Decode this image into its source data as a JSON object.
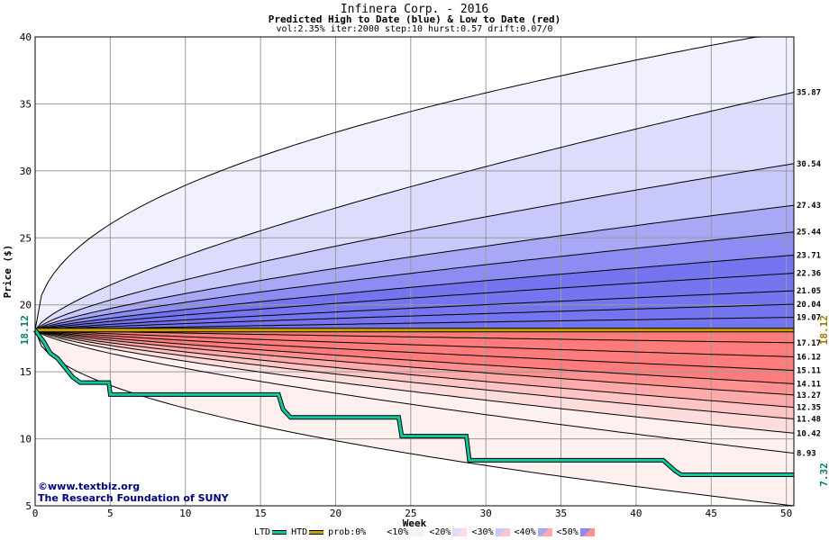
{
  "header": {
    "title": "Infinera Corp. - 2016",
    "subtitle": "Predicted High to Date (blue) &  Low to Date (red)",
    "params": "vol:2.35% iter:2000 step:10 hurst:0.57 drift:0.07/0"
  },
  "credit": {
    "site": "©www.textbiz.org",
    "org": "The Research Foundation of SUNY"
  },
  "chart_data": {
    "type": "area",
    "xlabel": "Week",
    "ylabel": "Price ($)",
    "xlim": [
      0,
      50.5
    ],
    "ylim": [
      5,
      40
    ],
    "x_ticks": [
      0,
      5,
      10,
      15,
      20,
      25,
      30,
      35,
      40,
      45,
      50
    ],
    "y_ticks": [
      5,
      10,
      15,
      20,
      25,
      30,
      35,
      40
    ],
    "grid": true,
    "start_price": 18.12,
    "start_label": "18.12",
    "current_price_label": "18.12",
    "ltd_end_label": "7.32",
    "colors": {
      "high_bands": [
        "#f0f0fe",
        "#dcdcfc",
        "#c8c8fa",
        "#a8a8f6",
        "#8c8cf2",
        "#7474ee"
      ],
      "low_bands": [
        "#fff0f0",
        "#ffdcdc",
        "#ffc4c4",
        "#ffaaaa",
        "#ff9090",
        "#ff7c7c"
      ],
      "price_line": "#c8a000",
      "ltd_line": "#10c8a0",
      "label_green": "#008060",
      "label_gold": "#a07800"
    },
    "high_series": [
      {
        "end": 40.5,
        "label": "",
        "exp": 0.45
      },
      {
        "end": 35.87,
        "label": "35.87",
        "exp": 0.72
      },
      {
        "end": 30.54,
        "label": "30.54",
        "exp": 0.74
      },
      {
        "end": 27.43,
        "label": "27.43",
        "exp": 0.76
      },
      {
        "end": 25.44,
        "label": "25.44",
        "exp": 0.78
      },
      {
        "end": 23.71,
        "label": "23.71",
        "exp": 0.8
      },
      {
        "end": 22.36,
        "label": "22.36",
        "exp": 0.82
      },
      {
        "end": 21.05,
        "label": "21.05",
        "exp": 0.84
      },
      {
        "end": 20.04,
        "label": "20.04",
        "exp": 0.86
      },
      {
        "end": 19.07,
        "label": "19.07",
        "exp": 0.88
      }
    ],
    "low_series": [
      {
        "end": 17.17,
        "label": "17.17",
        "exp": 0.88
      },
      {
        "end": 16.12,
        "label": "16.12",
        "exp": 0.86
      },
      {
        "end": 15.11,
        "label": "15.11",
        "exp": 0.84
      },
      {
        "end": 14.11,
        "label": "14.11",
        "exp": 0.82
      },
      {
        "end": 13.27,
        "label": "13.27",
        "exp": 0.8
      },
      {
        "end": 12.35,
        "label": "12.35",
        "exp": 0.78
      },
      {
        "end": 11.48,
        "label": "11.48",
        "exp": 0.76
      },
      {
        "end": 10.42,
        "label": "10.42",
        "exp": 0.74
      },
      {
        "end": 8.93,
        "label": "8.93",
        "exp": 0.72
      },
      {
        "end": 5.0,
        "label": "",
        "exp": 0.5
      }
    ],
    "ltd_series": [
      [
        0,
        18.12
      ],
      [
        0.6,
        17.2
      ],
      [
        1,
        16.4
      ],
      [
        1.5,
        16.0
      ],
      [
        2,
        15.3
      ],
      [
        2.5,
        14.6
      ],
      [
        3,
        14.2
      ],
      [
        4.9,
        14.2
      ],
      [
        5,
        13.3
      ],
      [
        16.2,
        13.3
      ],
      [
        16.5,
        12.2
      ],
      [
        17,
        11.6
      ],
      [
        24.2,
        11.6
      ],
      [
        24.4,
        10.2
      ],
      [
        28.7,
        10.2
      ],
      [
        28.9,
        8.4
      ],
      [
        41.8,
        8.4
      ],
      [
        42.2,
        8.0
      ],
      [
        42.6,
        7.6
      ],
      [
        43,
        7.32
      ],
      [
        50.5,
        7.32
      ]
    ]
  },
  "legend": {
    "ltd": "LTD",
    "htd": "HTD",
    "prob_prefix": "prob:0%",
    "items": [
      "<10%",
      "<20%",
      "<30%",
      "<40%",
      "<50%"
    ]
  }
}
